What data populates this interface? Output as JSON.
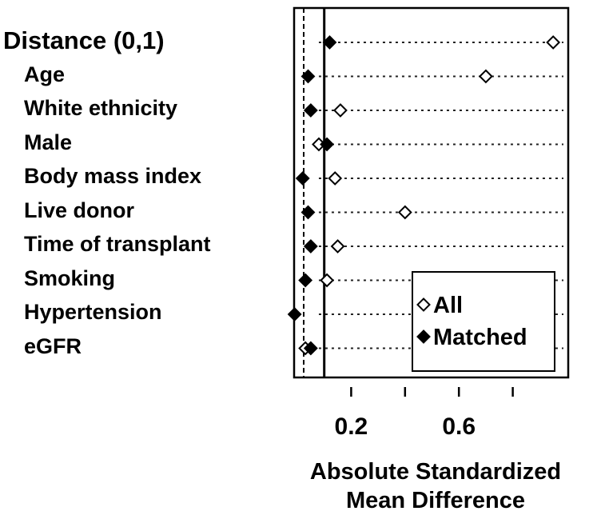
{
  "chart_data": {
    "type": "scatter",
    "title": "",
    "xlabel_lines": [
      "Absolute Standardized",
      "Mean Difference"
    ],
    "ylabel": "",
    "xlim": [
      0,
      0.98
    ],
    "xticks": [
      0.2,
      0.6
    ],
    "xtick_marks": [
      0.2,
      0.4,
      0.6,
      0.8
    ],
    "reference_lines": [
      0,
      0.1
    ],
    "categories": [
      "Distance (0,1)",
      "Age",
      "White ethnicity",
      "Male",
      "Body mass index",
      "Live donor",
      "Time of transplant",
      "Smoking",
      "Hypertension",
      "eGFR"
    ],
    "series": [
      {
        "name": "All",
        "marker": "open-diamond",
        "values": [
          0.95,
          0.7,
          0.16,
          0.08,
          0.14,
          0.4,
          0.15,
          0.11,
          null,
          0.03
        ]
      },
      {
        "name": "Matched",
        "marker": "filled-diamond",
        "values": [
          0.12,
          0.04,
          0.05,
          0.11,
          0.02,
          0.04,
          0.05,
          0.03,
          -0.01,
          0.05
        ]
      }
    ],
    "legend": {
      "placement": "bottom-right",
      "entries": [
        "All",
        "Matched"
      ]
    },
    "grid": false
  }
}
